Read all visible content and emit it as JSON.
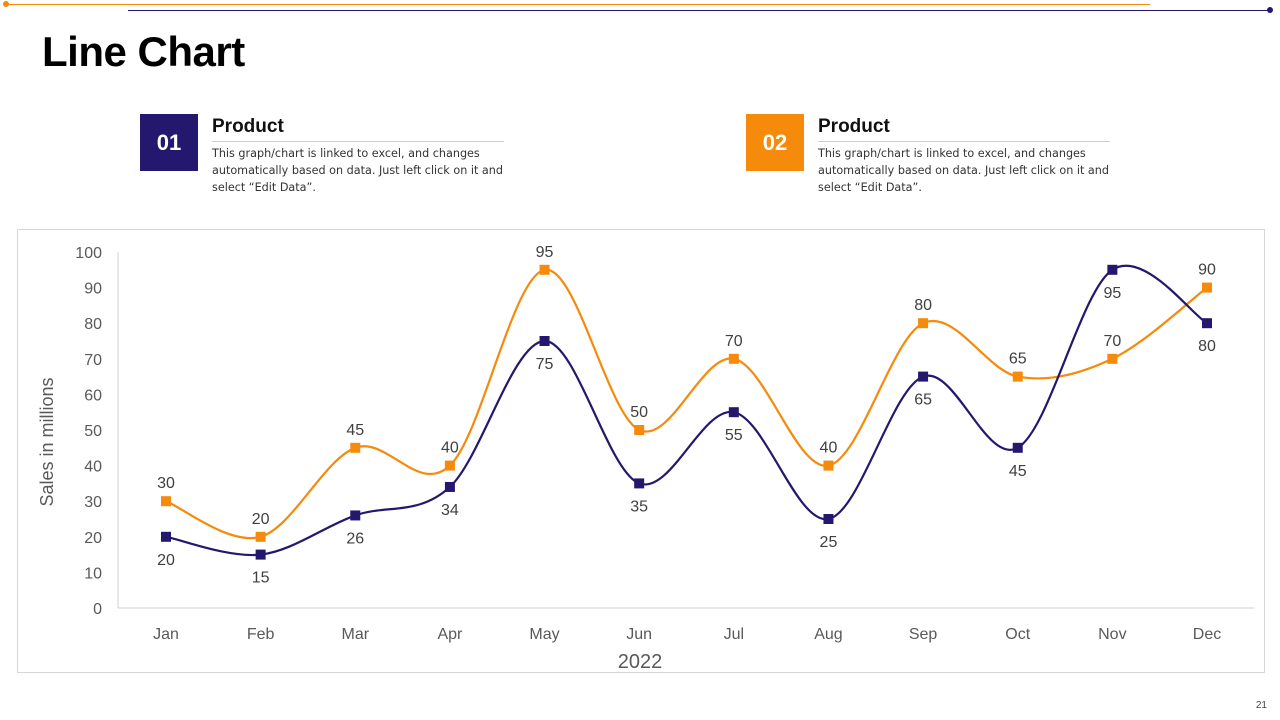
{
  "slide": {
    "title": "Line Chart",
    "page_number": "21",
    "colors": {
      "accent_navy": "#24186e",
      "accent_orange": "#f58a0b"
    }
  },
  "cards": [
    {
      "number": "01",
      "title": "Product",
      "description": "This graph/chart is linked to excel, and changes automatically based on data. Just left click on it and select “Edit Data”.",
      "color": "#24186e"
    },
    {
      "number": "02",
      "title": "Product",
      "description": "This graph/chart is linked to excel, and changes automatically based on data. Just left click on it and select “Edit Data”.",
      "color": "#f58a0b"
    }
  ],
  "chart_data": {
    "type": "line",
    "title": "",
    "xlabel": "2022",
    "ylabel": "Sales in millions",
    "ylim": [
      0,
      100
    ],
    "yticks": [
      0,
      10,
      20,
      30,
      40,
      50,
      60,
      70,
      80,
      90,
      100
    ],
    "categories": [
      "Jan",
      "Feb",
      "Mar",
      "Apr",
      "May",
      "Jun",
      "Jul",
      "Aug",
      "Sep",
      "Oct",
      "Nov",
      "Dec"
    ],
    "smooth": true,
    "grid": false,
    "series": [
      {
        "name": "Product 01",
        "color": "#24186e",
        "values": [
          20,
          15,
          26,
          34,
          75,
          35,
          55,
          25,
          65,
          45,
          95,
          80
        ],
        "label_position": "below"
      },
      {
        "name": "Product 02",
        "color": "#f58a0b",
        "values": [
          30,
          20,
          45,
          40,
          95,
          50,
          70,
          40,
          80,
          65,
          70,
          90
        ],
        "label_position": "above"
      }
    ]
  }
}
